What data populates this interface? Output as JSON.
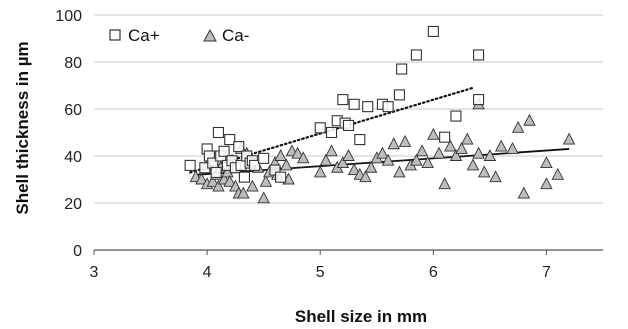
{
  "chart_data": {
    "type": "scatter",
    "title": "",
    "xlabel": "Shell size in mm",
    "ylabel": "Shell thickness in µm",
    "xlim": [
      3,
      7.5
    ],
    "ylim": [
      0,
      100
    ],
    "xticks": [
      3,
      4,
      5,
      6,
      7
    ],
    "yticks": [
      0,
      20,
      40,
      60,
      80,
      100
    ],
    "grid": "horizontal",
    "legend_position": "top-left",
    "series": [
      {
        "name": "Ca+",
        "marker": "square",
        "trend": "dotted",
        "trend_line": {
          "from": [
            3.85,
            33
          ],
          "to": [
            6.35,
            69
          ]
        },
        "points": [
          [
            3.85,
            36
          ],
          [
            3.98,
            35
          ],
          [
            4.0,
            43
          ],
          [
            4.02,
            40
          ],
          [
            4.05,
            37
          ],
          [
            4.08,
            33
          ],
          [
            4.1,
            50
          ],
          [
            4.12,
            40
          ],
          [
            4.15,
            42
          ],
          [
            4.18,
            36
          ],
          [
            4.2,
            47
          ],
          [
            4.22,
            38
          ],
          [
            4.25,
            35
          ],
          [
            4.28,
            44
          ],
          [
            4.3,
            36
          ],
          [
            4.33,
            31
          ],
          [
            4.35,
            40
          ],
          [
            4.38,
            37
          ],
          [
            4.4,
            38
          ],
          [
            4.42,
            36
          ],
          [
            4.5,
            39
          ],
          [
            4.6,
            34
          ],
          [
            4.65,
            31
          ],
          [
            5.0,
            52
          ],
          [
            5.1,
            50
          ],
          [
            5.15,
            55
          ],
          [
            5.2,
            64
          ],
          [
            5.22,
            54
          ],
          [
            5.25,
            53
          ],
          [
            5.3,
            62
          ],
          [
            5.35,
            47
          ],
          [
            5.42,
            61
          ],
          [
            5.55,
            62
          ],
          [
            5.6,
            61
          ],
          [
            5.7,
            66
          ],
          [
            5.72,
            77
          ],
          [
            5.85,
            83
          ],
          [
            6.0,
            93
          ],
          [
            6.1,
            48
          ],
          [
            6.2,
            57
          ],
          [
            6.4,
            83
          ],
          [
            6.4,
            64
          ]
        ]
      },
      {
        "name": "Ca-",
        "marker": "triangle",
        "trend": "solid",
        "trend_line": {
          "from": [
            3.9,
            32
          ],
          "to": [
            7.2,
            43
          ]
        },
        "points": [
          [
            3.9,
            31
          ],
          [
            3.95,
            30
          ],
          [
            4.0,
            28
          ],
          [
            4.0,
            36
          ],
          [
            4.05,
            29
          ],
          [
            4.08,
            32
          ],
          [
            4.1,
            27
          ],
          [
            4.12,
            35
          ],
          [
            4.15,
            30
          ],
          [
            4.18,
            33
          ],
          [
            4.2,
            29
          ],
          [
            4.22,
            38
          ],
          [
            4.25,
            27
          ],
          [
            4.28,
            24
          ],
          [
            4.3,
            43
          ],
          [
            4.32,
            24
          ],
          [
            4.35,
            41
          ],
          [
            4.4,
            27
          ],
          [
            4.45,
            35
          ],
          [
            4.5,
            22
          ],
          [
            4.52,
            29
          ],
          [
            4.55,
            33
          ],
          [
            4.6,
            37
          ],
          [
            4.62,
            32
          ],
          [
            4.65,
            40
          ],
          [
            4.7,
            36
          ],
          [
            4.72,
            30
          ],
          [
            4.75,
            42
          ],
          [
            4.8,
            41
          ],
          [
            4.85,
            39
          ],
          [
            5.0,
            33
          ],
          [
            5.05,
            38
          ],
          [
            5.1,
            42
          ],
          [
            5.15,
            35
          ],
          [
            5.2,
            37
          ],
          [
            5.25,
            40
          ],
          [
            5.3,
            34
          ],
          [
            5.35,
            32
          ],
          [
            5.4,
            31
          ],
          [
            5.45,
            35
          ],
          [
            5.5,
            39
          ],
          [
            5.55,
            41
          ],
          [
            5.6,
            38
          ],
          [
            5.65,
            45
          ],
          [
            5.7,
            33
          ],
          [
            5.75,
            46
          ],
          [
            5.8,
            36
          ],
          [
            5.85,
            38
          ],
          [
            5.9,
            42
          ],
          [
            5.95,
            37
          ],
          [
            6.0,
            49
          ],
          [
            6.05,
            41
          ],
          [
            6.1,
            28
          ],
          [
            6.15,
            44
          ],
          [
            6.2,
            40
          ],
          [
            6.25,
            43
          ],
          [
            6.3,
            47
          ],
          [
            6.35,
            36
          ],
          [
            6.4,
            41
          ],
          [
            6.4,
            62
          ],
          [
            6.45,
            33
          ],
          [
            6.5,
            40
          ],
          [
            6.55,
            31
          ],
          [
            6.6,
            44
          ],
          [
            6.7,
            43
          ],
          [
            6.75,
            52
          ],
          [
            6.8,
            24
          ],
          [
            6.85,
            55
          ],
          [
            7.0,
            28
          ],
          [
            7.0,
            37
          ],
          [
            7.1,
            32
          ],
          [
            7.2,
            47
          ]
        ]
      }
    ]
  }
}
